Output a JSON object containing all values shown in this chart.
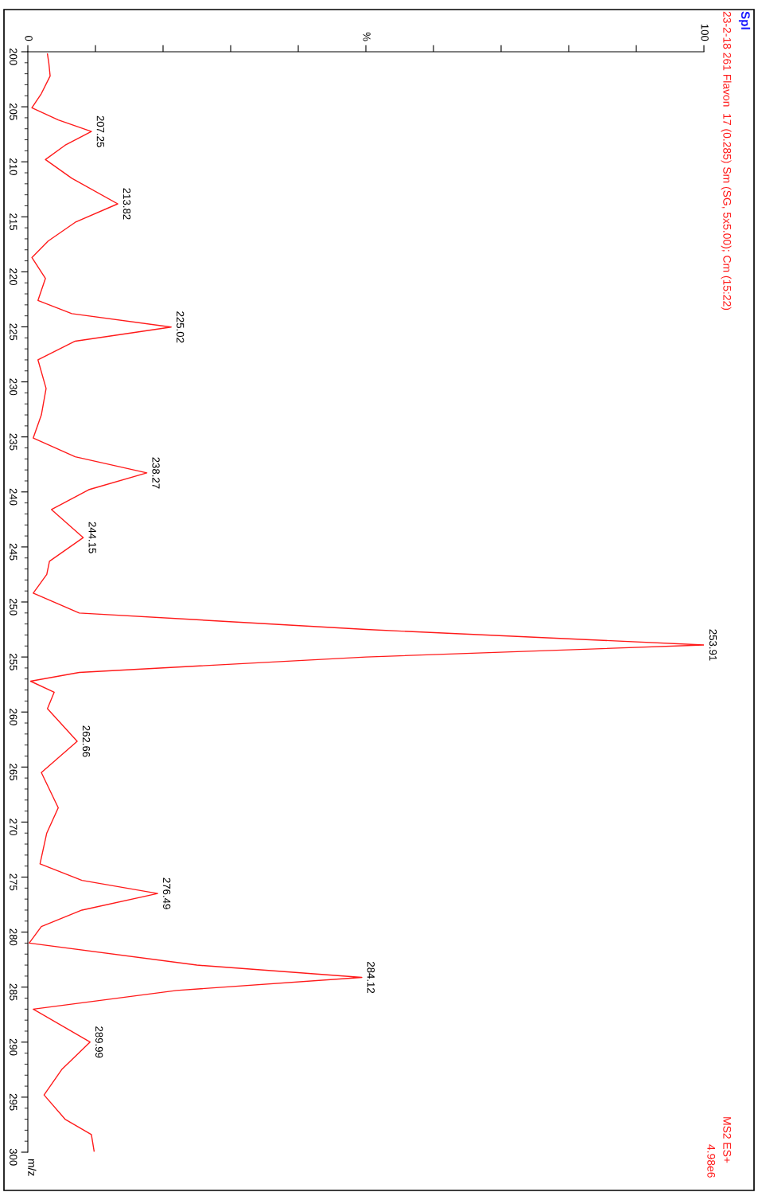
{
  "chart_data": {
    "type": "line",
    "orientation": "horizontal",
    "title": "Spl",
    "subtitle": "23-2-18 261 Flavon  17 (0.285) Sm (SG, 5x5.00); Cm (15:22)",
    "ylabel": "%",
    "x": [
      200.2,
      201.0,
      202.2,
      203.8,
      205.1,
      206.2,
      207.25,
      208.5,
      209.8,
      211.5,
      213.82,
      215.5,
      217.2,
      218.7,
      220.6,
      222.6,
      223.8,
      225.02,
      226.3,
      228.0,
      230.6,
      233.0,
      235.1,
      236.8,
      238.27,
      239.8,
      241.6,
      244.15,
      246.3,
      247.5,
      249.2,
      251.0,
      252.5,
      253.91,
      255.0,
      256.4,
      257.2,
      258.2,
      259.7,
      262.66,
      265.5,
      268.7,
      271.0,
      273.8,
      275.3,
      276.49,
      278.0,
      279.5,
      281.0,
      283.0,
      284.12,
      285.3,
      287.0,
      289.99,
      292.5,
      294.8,
      297.0,
      298.4,
      299.9
    ],
    "series": [
      {
        "color": "#ff1a1a",
        "values": [
          2.9,
          3.1,
          3.3,
          2.0,
          0.6,
          4.5,
          9.4,
          5.5,
          2.6,
          6.5,
          13.3,
          7.0,
          3.0,
          0.6,
          2.6,
          1.5,
          6.5,
          21.2,
          7.0,
          1.5,
          2.7,
          2.0,
          0.8,
          7.0,
          17.6,
          9.0,
          3.5,
          8.2,
          3.2,
          2.8,
          0.8,
          7.6,
          50.0,
          100,
          50.0,
          7.6,
          0.4,
          3.9,
          2.9,
          7.3,
          2.0,
          4.5,
          2.8,
          1.8,
          8.0,
          19.2,
          8.0,
          2.0,
          0.2,
          25.0,
          49.4,
          22.0,
          0.8,
          9.2,
          5.0,
          2.4,
          5.5,
          9.4,
          9.8
        ]
      }
    ],
    "xlim": [
      0,
      100
    ],
    "xticks": [
      0,
      {
        "value": 10,
        "label": null
      },
      {
        "value": 20,
        "label": null
      },
      {
        "value": 30,
        "label": null
      },
      {
        "value": 40,
        "label": null
      },
      {
        "value": 50,
        "label": null
      },
      {
        "value": 60,
        "label": null
      },
      {
        "value": 70,
        "label": null
      },
      {
        "value": 80,
        "label": null
      },
      {
        "value": 90,
        "label": null
      },
      100
    ],
    "ylim": [
      300,
      200
    ],
    "yticks": [
      200,
      205,
      210,
      215,
      220,
      225,
      230,
      235,
      240,
      245,
      250,
      255,
      260,
      265,
      270,
      275,
      280,
      285,
      290,
      295,
      300
    ],
    "annotations": [
      {
        "text": "207.25",
        "x": 9.4,
        "y": 207.25
      },
      {
        "text": "213.82",
        "x": 13.3,
        "y": 213.82
      },
      {
        "text": "225.02",
        "x": 21.2,
        "y": 225.02
      },
      {
        "text": "238.27",
        "x": 17.6,
        "y": 238.27
      },
      {
        "text": "244.15",
        "x": 8.2,
        "y": 244.15
      },
      {
        "text": "253.91",
        "x": 100,
        "y": 253.91
      },
      {
        "text": "262.66",
        "x": 7.3,
        "y": 262.66
      },
      {
        "text": "276.49",
        "x": 19.2,
        "y": 276.49
      },
      {
        "text": "284.12",
        "x": 49.4,
        "y": 284.12
      },
      {
        "text": "289.99",
        "x": 9.2,
        "y": 289.99
      },
      "MS2 ES+",
      "4.98e6",
      "m/z"
    ],
    "grid": false,
    "legend": false,
    "marker": "none",
    "line_style": "solid"
  }
}
